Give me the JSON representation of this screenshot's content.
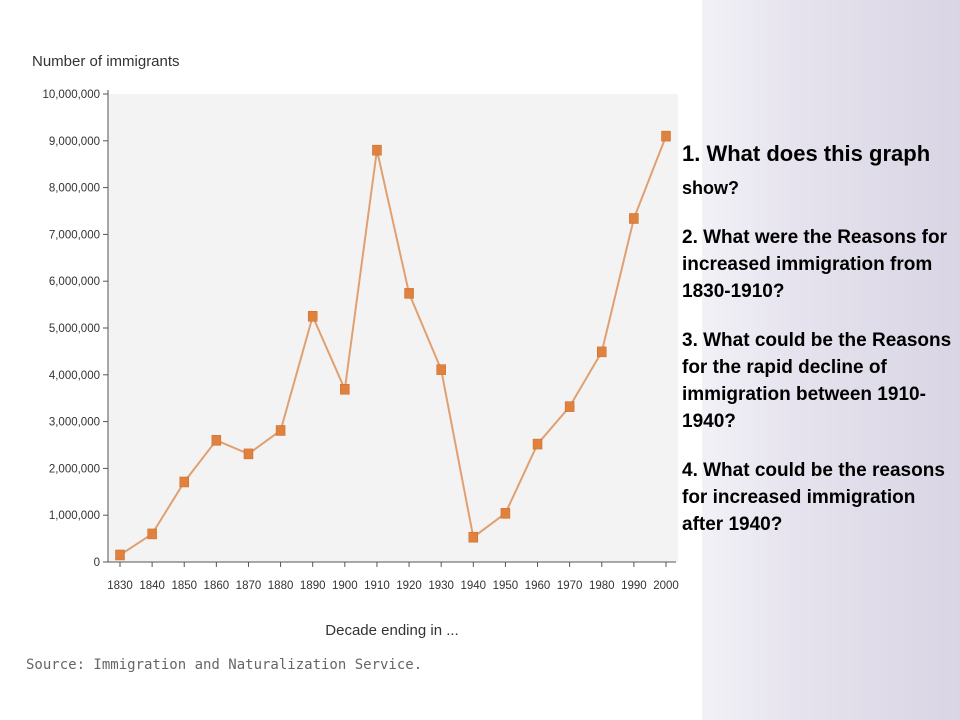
{
  "chart_data": {
    "type": "line",
    "ylabel": "Number of immigrants",
    "xlabel": "Decade ending in ...",
    "source": "Source: Immigration and Naturalization Service.",
    "ylim": [
      0,
      10000000
    ],
    "yticks": [
      0,
      1000000,
      2000000,
      3000000,
      4000000,
      5000000,
      6000000,
      7000000,
      8000000,
      9000000,
      10000000
    ],
    "ytick_labels": [
      "0",
      "1,000,000",
      "2,000,000",
      "3,000,000",
      "4,000,000",
      "5,000,000",
      "6,000,000",
      "7,000,000",
      "8,000,000",
      "9,000,000",
      "10,000,000"
    ],
    "x": [
      "1830",
      "1840",
      "1850",
      "1860",
      "1870",
      "1880",
      "1890",
      "1900",
      "1910",
      "1920",
      "1930",
      "1940",
      "1950",
      "1960",
      "1970",
      "1980",
      "1990",
      "2000"
    ],
    "series": [
      {
        "values": [
          150000,
          600000,
          1710000,
          2600000,
          2310000,
          2810000,
          5250000,
          3690000,
          8800000,
          5740000,
          4110000,
          530000,
          1040000,
          2520000,
          3320000,
          4490000,
          7340000,
          9100000
        ]
      }
    ],
    "grid": false,
    "line_color": "#e0a070",
    "marker_color": "#e0823e",
    "plot_bg": "#f3f3f3"
  },
  "questions": {
    "q1_main": "1.  What does this graph",
    "q1_small": " show?",
    "q2": "2. What were the Reasons for increased immigration from 1830-1910?",
    "q3": "3. What could be the Reasons for the rapid decline of immigration between 1910-1940?",
    "q4_line1": "4. What could be the reasons",
    "q4_line2": "for increased immigration after 1940?"
  }
}
